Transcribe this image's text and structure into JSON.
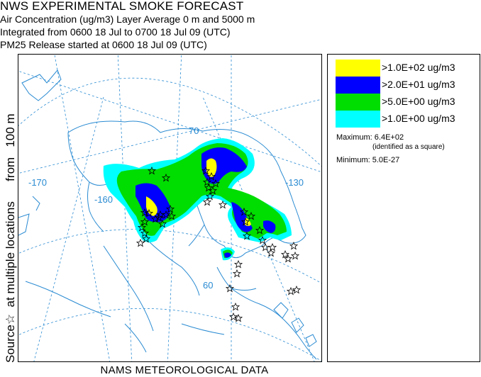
{
  "header": {
    "title": "NWS EXPERIMENTAL SMOKE FORECAST",
    "line1": "Air Concentration (ug/m3) Layer Average    0 m and  5000 m",
    "line2": "Integrated from 0600 18 Jul to 0700 18 Jul 09 (UTC)",
    "line3": "PM25 Release started at 0600 18 Jul 09 (UTC)"
  },
  "side_label": "Source☆  at multiple locations      from   100 m",
  "footer": "NAMS METEOROLOGICAL DATA",
  "graticule": {
    "lat_labels": [
      "70",
      "60"
    ],
    "lon_labels": [
      "-170",
      "-160",
      "-130"
    ]
  },
  "legend": {
    "items": [
      {
        "label": ">1.0E+02 ug/m3",
        "color": "#ffff00"
      },
      {
        "label": ">2.0E+01 ug/m3",
        "color": "#0000ff"
      },
      {
        "label": ">5.0E+00 ug/m3",
        "color": "#00dd00"
      },
      {
        "label": ">1.0E+00 ug/m3",
        "color": "#00ffff"
      }
    ],
    "maximum": "Maximum: 6.4E+02",
    "maximum_note": "(identified as a square)",
    "minimum": "Minimum: 5.0E-27"
  },
  "colors": {
    "coast": "#2a8bd2",
    "graticule": "#2a8bd2",
    "cyan": "#00ffff",
    "green": "#00dd00",
    "blue": "#0000ff",
    "yellow": "#ffff00"
  }
}
